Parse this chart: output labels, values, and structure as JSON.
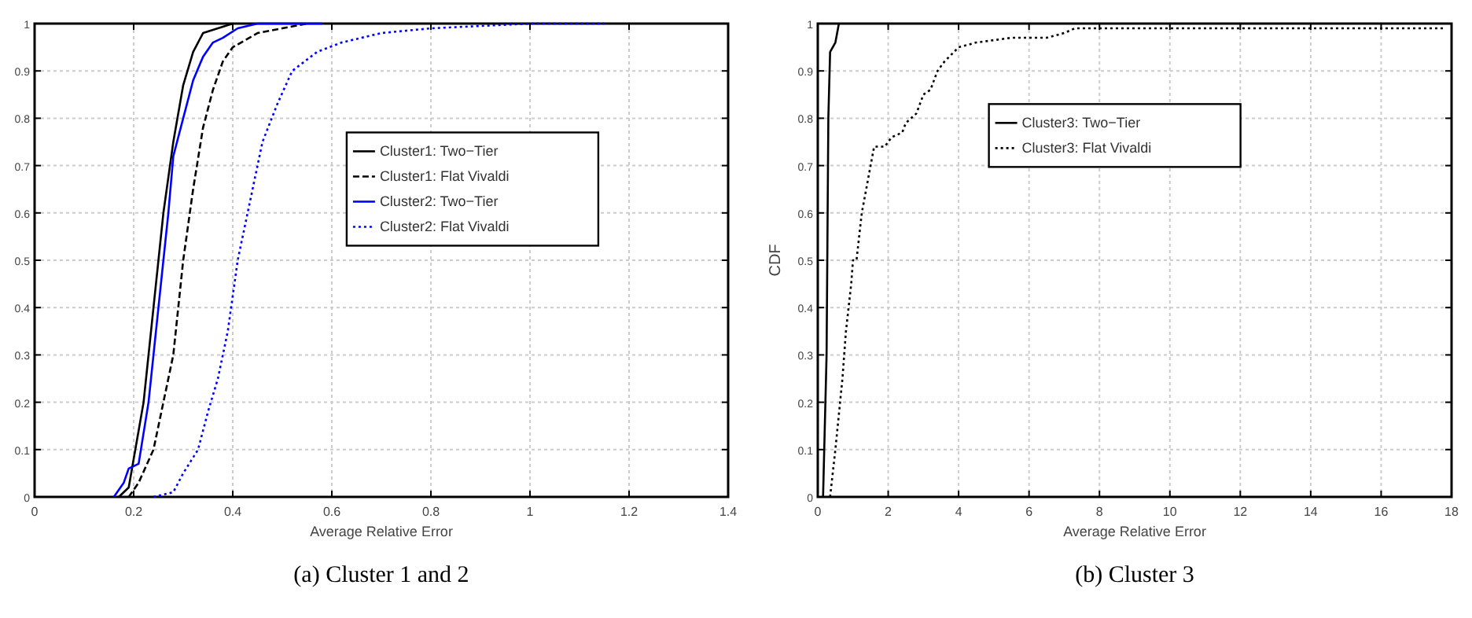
{
  "chart_data": [
    {
      "type": "line",
      "title": "(a)  Cluster 1 and 2",
      "xlabel": "Average Relative Error",
      "xlim": [
        0,
        1.4
      ],
      "xticks": [
        0,
        0.2,
        0.4,
        0.6,
        0.8,
        1,
        1.2,
        1.4
      ],
      "ylim": [
        0,
        1
      ],
      "yticks": [
        0,
        0.1,
        0.2,
        0.3,
        0.4,
        0.5,
        0.6,
        0.7,
        0.8,
        0.9,
        1
      ],
      "grid": true,
      "legend": "right",
      "series": [
        {
          "name": "Cluster1: Two−Tier",
          "color": "#000000",
          "line_style": "solid",
          "x": [
            0.17,
            0.19,
            0.2,
            0.22,
            0.24,
            0.26,
            0.28,
            0.3,
            0.32,
            0.34,
            0.37,
            0.4
          ],
          "values": [
            0,
            0.02,
            0.08,
            0.2,
            0.4,
            0.6,
            0.75,
            0.87,
            0.94,
            0.98,
            0.99,
            1
          ]
        },
        {
          "name": "Cluster1: Flat Vivaldi",
          "color": "#000000",
          "line_style": "dashed",
          "x": [
            0.19,
            0.21,
            0.24,
            0.26,
            0.28,
            0.3,
            0.32,
            0.34,
            0.36,
            0.38,
            0.4,
            0.45,
            0.5,
            0.55
          ],
          "values": [
            0,
            0.03,
            0.1,
            0.2,
            0.3,
            0.5,
            0.65,
            0.78,
            0.86,
            0.92,
            0.95,
            0.98,
            0.99,
            1
          ]
        },
        {
          "name": "Cluster2: Two−Tier",
          "color": "#0000ff",
          "line_style": "solid",
          "x": [
            0.16,
            0.18,
            0.19,
            0.21,
            0.23,
            0.25,
            0.27,
            0.28,
            0.3,
            0.32,
            0.34,
            0.36,
            0.38,
            0.41,
            0.45,
            0.58
          ],
          "values": [
            0,
            0.03,
            0.06,
            0.07,
            0.2,
            0.4,
            0.6,
            0.72,
            0.8,
            0.88,
            0.93,
            0.96,
            0.97,
            0.99,
            1,
            1
          ]
        },
        {
          "name": "Cluster2: Flat Vivaldi",
          "color": "#0000ff",
          "line_style": "dotted",
          "x": [
            0.24,
            0.28,
            0.3,
            0.33,
            0.35,
            0.37,
            0.39,
            0.41,
            0.43,
            0.46,
            0.49,
            0.52,
            0.57,
            0.62,
            0.7,
            0.8,
            1.0,
            1.15
          ],
          "values": [
            0,
            0.01,
            0.05,
            0.1,
            0.18,
            0.25,
            0.35,
            0.5,
            0.6,
            0.75,
            0.83,
            0.9,
            0.94,
            0.96,
            0.98,
            0.99,
            1,
            1
          ]
        }
      ]
    },
    {
      "type": "line",
      "title": "(b)  Cluster 3",
      "xlabel": "Average Relative Error",
      "ylabel": "CDF",
      "xlim": [
        0,
        18
      ],
      "xticks": [
        0,
        2,
        4,
        6,
        8,
        10,
        12,
        14,
        16,
        18
      ],
      "ylim": [
        0,
        1
      ],
      "yticks": [
        0,
        0.1,
        0.2,
        0.3,
        0.4,
        0.5,
        0.6,
        0.7,
        0.8,
        0.9,
        1
      ],
      "grid": true,
      "legend": "top",
      "series": [
        {
          "name": "Cluster3: Two−Tier",
          "color": "#000000",
          "line_style": "solid",
          "x": [
            0.15,
            0.25,
            0.3,
            0.35,
            0.5,
            0.6
          ],
          "values": [
            0,
            0.3,
            0.8,
            0.94,
            0.96,
            1
          ]
        },
        {
          "name": "Cluster3: Flat Vivaldi",
          "color": "#000000",
          "line_style": "dotted",
          "x": [
            0.35,
            0.5,
            0.7,
            0.8,
            0.95,
            1.0,
            1.1,
            1.25,
            1.5,
            1.6,
            1.9,
            2.1,
            2.4,
            2.5,
            2.8,
            3.0,
            3.2,
            3.4,
            3.6,
            4.0,
            4.5,
            5.5,
            6.5,
            7,
            7.3,
            17.8
          ],
          "values": [
            0,
            0.1,
            0.25,
            0.35,
            0.45,
            0.5,
            0.5,
            0.6,
            0.7,
            0.74,
            0.74,
            0.76,
            0.77,
            0.79,
            0.81,
            0.85,
            0.86,
            0.9,
            0.92,
            0.95,
            0.96,
            0.97,
            0.97,
            0.98,
            0.99,
            0.99
          ]
        }
      ]
    }
  ]
}
